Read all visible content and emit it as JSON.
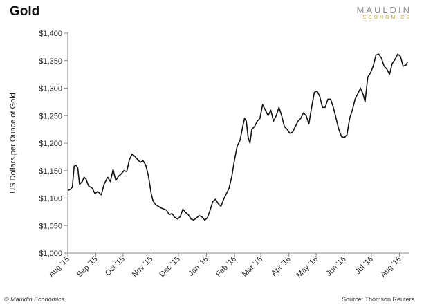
{
  "header": {
    "title": "Gold",
    "logo_main": "MAULDIN",
    "logo_sub": "ECONOMICS"
  },
  "footer": {
    "credit": "© Mauldin Economics",
    "source": "Source: Thomson Reuters"
  },
  "colors": {
    "line": "#111111",
    "axis": "#888888",
    "logo_gold": "#c9a227"
  },
  "chart_data": {
    "type": "line",
    "title": "Gold",
    "ylabel": "US Dollars per Ounce of Gold",
    "xlabel": "",
    "ylim": [
      1000,
      1400
    ],
    "yticks": [
      1000,
      1050,
      1100,
      1150,
      1200,
      1250,
      1300,
      1350,
      1400
    ],
    "ytick_labels": [
      "$1,000",
      "$1,050",
      "$1,100",
      "$1,150",
      "$1,200",
      "$1,250",
      "$1,300",
      "$1,350",
      "$1,400"
    ],
    "xlim": [
      "2015-08-01",
      "2016-08-12"
    ],
    "xticks": [
      "2015-08-01",
      "2015-09-01",
      "2015-10-01",
      "2015-11-01",
      "2015-12-01",
      "2016-01-01",
      "2016-02-01",
      "2016-03-01",
      "2016-04-01",
      "2016-05-01",
      "2016-06-01",
      "2016-07-01",
      "2016-08-01"
    ],
    "xtick_labels": [
      "Aug '15",
      "Sep '15",
      "Oct '15",
      "Nov '15",
      "Dec '15",
      "Jan '16",
      "Feb '16",
      "Mar '16",
      "Apr '16",
      "May '16",
      "Jun '16",
      "Jul '16",
      "Aug '16"
    ],
    "grid": "none",
    "legend": "none",
    "series": [
      {
        "x": [
          "2015-08-01",
          "2015-08-04",
          "2015-08-06",
          "2015-08-08",
          "2015-08-10",
          "2015-08-12",
          "2015-08-14",
          "2015-08-17",
          "2015-08-19",
          "2015-08-21",
          "2015-08-24",
          "2015-08-26",
          "2015-08-28",
          "2015-08-31",
          "2015-09-03",
          "2015-09-07",
          "2015-09-10",
          "2015-09-14",
          "2015-09-17",
          "2015-09-20",
          "2015-09-23",
          "2015-09-26",
          "2015-09-29",
          "2015-10-02",
          "2015-10-05",
          "2015-10-08",
          "2015-10-11",
          "2015-10-14",
          "2015-10-17",
          "2015-10-20",
          "2015-10-23",
          "2015-10-26",
          "2015-10-29",
          "2015-11-01",
          "2015-11-03",
          "2015-11-06",
          "2015-11-09",
          "2015-11-12",
          "2015-11-15",
          "2015-11-18",
          "2015-11-21",
          "2015-11-24",
          "2015-11-27",
          "2015-11-30",
          "2015-12-03",
          "2015-12-06",
          "2015-12-09",
          "2015-12-12",
          "2015-12-15",
          "2015-12-18",
          "2015-12-21",
          "2015-12-24",
          "2015-12-27",
          "2015-12-30",
          "2016-01-02",
          "2016-01-05",
          "2016-01-08",
          "2016-01-11",
          "2016-01-14",
          "2016-01-17",
          "2016-01-20",
          "2016-01-23",
          "2016-01-26",
          "2016-01-29",
          "2016-02-01",
          "2016-02-04",
          "2016-02-07",
          "2016-02-10",
          "2016-02-12",
          "2016-02-14",
          "2016-02-16",
          "2016-02-18",
          "2016-02-20",
          "2016-02-23",
          "2016-02-26",
          "2016-02-29",
          "2016-03-03",
          "2016-03-06",
          "2016-03-09",
          "2016-03-12",
          "2016-03-15",
          "2016-03-18",
          "2016-03-21",
          "2016-03-24",
          "2016-03-27",
          "2016-03-30",
          "2016-04-02",
          "2016-04-05",
          "2016-04-08",
          "2016-04-11",
          "2016-04-14",
          "2016-04-17",
          "2016-04-20",
          "2016-04-23",
          "2016-04-26",
          "2016-04-29",
          "2016-05-02",
          "2016-05-05",
          "2016-05-08",
          "2016-05-11",
          "2016-05-14",
          "2016-05-17",
          "2016-05-20",
          "2016-05-23",
          "2016-05-26",
          "2016-05-29",
          "2016-06-01",
          "2016-06-04",
          "2016-06-07",
          "2016-06-10",
          "2016-06-13",
          "2016-06-16",
          "2016-06-19",
          "2016-06-22",
          "2016-06-24",
          "2016-06-27",
          "2016-06-30",
          "2016-07-03",
          "2016-07-06",
          "2016-07-09",
          "2016-07-12",
          "2016-07-15",
          "2016-07-18",
          "2016-07-21",
          "2016-07-24",
          "2016-07-27",
          "2016-07-30",
          "2016-08-02",
          "2016-08-05",
          "2016-08-08",
          "2016-08-10"
        ],
        "values": [
          1114,
          1116,
          1120,
          1158,
          1160,
          1155,
          1125,
          1130,
          1138,
          1135,
          1122,
          1120,
          1118,
          1108,
          1112,
          1106,
          1125,
          1138,
          1130,
          1152,
          1132,
          1140,
          1144,
          1150,
          1148,
          1170,
          1180,
          1176,
          1170,
          1165,
          1168,
          1160,
          1140,
          1108,
          1095,
          1088,
          1085,
          1082,
          1080,
          1078,
          1070,
          1072,
          1065,
          1062,
          1066,
          1080,
          1074,
          1070,
          1062,
          1060,
          1064,
          1068,
          1066,
          1060,
          1064,
          1078,
          1094,
          1098,
          1090,
          1085,
          1098,
          1108,
          1118,
          1140,
          1170,
          1195,
          1205,
          1230,
          1245,
          1240,
          1210,
          1200,
          1225,
          1230,
          1240,
          1245,
          1270,
          1260,
          1250,
          1260,
          1240,
          1250,
          1265,
          1250,
          1230,
          1225,
          1218,
          1220,
          1230,
          1240,
          1245,
          1255,
          1250,
          1235,
          1265,
          1292,
          1295,
          1285,
          1265,
          1265,
          1280,
          1280,
          1265,
          1245,
          1225,
          1212,
          1210,
          1215,
          1245,
          1260,
          1280,
          1290,
          1300,
          1288,
          1275,
          1320,
          1328,
          1340,
          1360,
          1362,
          1355,
          1340,
          1335,
          1325,
          1345,
          1352,
          1362,
          1358,
          1340,
          1342,
          1348
        ]
      }
    ]
  }
}
